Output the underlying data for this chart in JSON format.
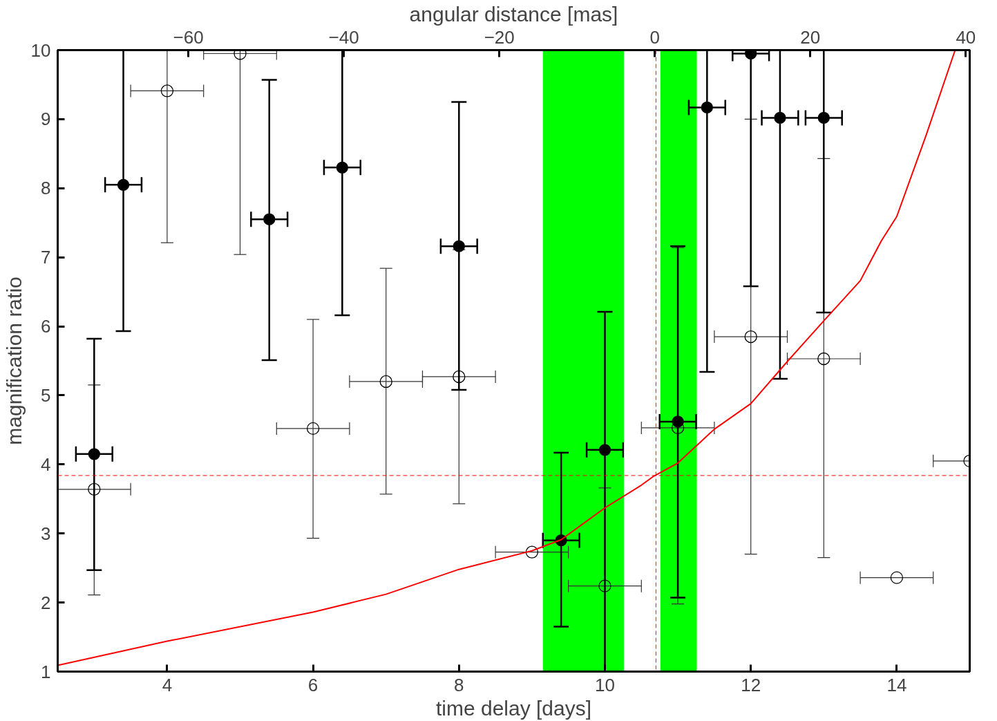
{
  "chart_data": {
    "type": "scatter",
    "xlabel": "time delay [days]",
    "ylabel": "magnification ratio",
    "x2label": "angular distance [mas]",
    "xlim": [
      2.5,
      15.0
    ],
    "xticks": [
      4,
      6,
      8,
      10,
      12,
      14
    ],
    "ylim": [
      1,
      10
    ],
    "yticks": [
      1,
      2,
      3,
      4,
      5,
      6,
      7,
      8,
      9,
      10
    ],
    "x2lim": [
      -76.8,
      40.5
    ],
    "x2ticks": [
      -60,
      -40,
      -20,
      0,
      20,
      40
    ],
    "grid": false,
    "series": [
      {
        "color": "#000000",
        "marker": "circle",
        "x": [
          3,
          4,
          5,
          6,
          7,
          8,
          9,
          10,
          11,
          12,
          13,
          14,
          15
        ],
        "values": [
          3.64,
          9.41,
          9.95,
          4.52,
          5.2,
          5.27,
          2.73,
          2.24,
          4.53,
          5.85,
          5.53,
          2.36,
          4.05
        ],
        "errors": [
          [
            2.11,
            5.15
          ],
          [
            7.21,
            10
          ],
          [
            7.04,
            10
          ],
          [
            2.93,
            6.1
          ],
          [
            3.57,
            6.84
          ],
          [
            3.43,
            7.11
          ],
          null,
          [
            1,
            3.66
          ],
          [
            1.98,
            7.14
          ],
          [
            2.7,
            9.0
          ],
          [
            2.65,
            8.43
          ],
          null,
          null
        ],
        "xerrors": [
          0.5,
          0.5,
          0.5,
          0.5,
          0.5,
          0.5,
          0.5,
          0.5,
          0.5,
          0.5,
          0.5,
          0.5,
          0.5
        ]
      },
      {
        "color": "#000000",
        "marker": "circle",
        "x": [
          3.0,
          3.4,
          5.4,
          6.4,
          8.0,
          9.4,
          10.0,
          11.0,
          11.4,
          12.0,
          12.4,
          13.0
        ],
        "values": [
          4.15,
          8.05,
          7.55,
          8.3,
          7.16,
          2.9,
          4.21,
          4.62,
          9.17,
          9.95,
          9.02,
          9.02
        ],
        "errors": [
          [
            2.47,
            5.82
          ],
          [
            5.93,
            10
          ],
          [
            5.51,
            9.57
          ],
          [
            6.16,
            10
          ],
          [
            5.08,
            9.25
          ],
          [
            1.65,
            4.17
          ],
          [
            1,
            6.21
          ],
          [
            2.07,
            7.16
          ],
          [
            5.34,
            10
          ],
          [
            6.58,
            10
          ],
          [
            5.24,
            10
          ],
          [
            6.2,
            10
          ]
        ],
        "xerrors": [
          0.25,
          0.25,
          0.25,
          0.25,
          0.25,
          0.25,
          0.25,
          0.25,
          0.25,
          0.25,
          0.25,
          0.25
        ]
      },
      {
        "type": "line",
        "color": "#ff0000",
        "marker": "none",
        "x": [
          2.5,
          4,
          6,
          7,
          8,
          9,
          9.4,
          10,
          10.5,
          10.67,
          11,
          11.5,
          12,
          12.5,
          13,
          13.5,
          13.79,
          14,
          14.4,
          14.8
        ],
        "values": [
          1.09,
          1.44,
          1.86,
          2.12,
          2.48,
          2.75,
          2.91,
          3.37,
          3.7,
          3.83,
          4.02,
          4.51,
          4.88,
          5.49,
          6.08,
          6.66,
          7.24,
          7.59,
          8.76,
          10.0
        ]
      }
    ],
    "ref_lines": [
      {
        "axis": "y",
        "value": 3.84,
        "color": "#ff0000",
        "line_style": "dashed"
      },
      {
        "axis": "x",
        "value": 10.7,
        "color": "#ff0000",
        "line_style": "dashed"
      }
    ],
    "bands": [
      {
        "axis": "x",
        "from": 9.15,
        "to": 10.26,
        "color": "#00ff00"
      },
      {
        "axis": "x",
        "from": 10.76,
        "to": 11.26,
        "color": "#00ff00"
      }
    ]
  }
}
